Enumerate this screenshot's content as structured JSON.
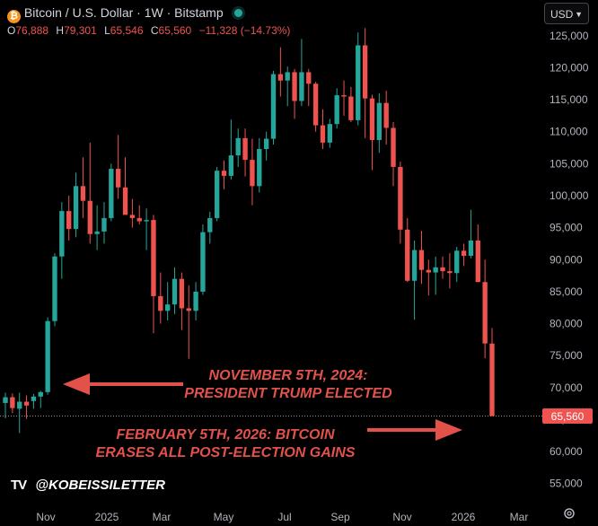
{
  "header": {
    "btc_glyph": "₿",
    "title": "Bitcoin / U.S. Dollar · 1W · Bitstamp",
    "ohlc": [
      {
        "k": "O",
        "v": "76,888"
      },
      {
        "k": "H",
        "v": "79,301"
      },
      {
        "k": "L",
        "v": "65,546"
      },
      {
        "k": "C",
        "v": "65,560"
      }
    ],
    "change": "−11,328 (−14.73%)"
  },
  "currency_select": {
    "label": "USD"
  },
  "annotations": {
    "election": [
      "NOVEMBER 5TH, 2024:",
      "PRESIDENT TRUMP ELECTED"
    ],
    "crash": [
      "FEBRUARY 5TH, 2026: BITCOIN",
      "ERASES ALL POST-ELECTION GAINS"
    ]
  },
  "brand": {
    "logo": "TV",
    "handle": "@KOBEISSILETTER"
  },
  "colors": {
    "up": "#26a69a",
    "down": "#ef5350",
    "annotation": "#e2524b",
    "price_tag": "#ef5350"
  },
  "chart_data": {
    "type": "candlestick",
    "x_tick_labels": [
      "Nov",
      "2025",
      "Mar",
      "May",
      "Jul",
      "Sep",
      "Nov",
      "2026",
      "Mar"
    ],
    "y_tick_labels": [
      55000,
      60000,
      65000,
      70000,
      75000,
      80000,
      85000,
      90000,
      95000,
      100000,
      105000,
      110000,
      115000,
      120000,
      125000
    ],
    "ylim": [
      53000,
      127500
    ],
    "last_price": 65560,
    "last_price_label": "65,560",
    "candles": [
      {
        "o": 67600,
        "h": 69200,
        "l": 65200,
        "c": 68500
      },
      {
        "o": 68500,
        "h": 69100,
        "l": 66000,
        "c": 66800
      },
      {
        "o": 66700,
        "h": 69200,
        "l": 62900,
        "c": 67800
      },
      {
        "o": 67800,
        "h": 68800,
        "l": 65100,
        "c": 67200
      },
      {
        "o": 67900,
        "h": 69000,
        "l": 66700,
        "c": 68600
      },
      {
        "o": 68600,
        "h": 69500,
        "l": 66800,
        "c": 69300
      },
      {
        "o": 69300,
        "h": 81000,
        "l": 68900,
        "c": 80400
      },
      {
        "o": 80400,
        "h": 91000,
        "l": 79600,
        "c": 90500
      },
      {
        "o": 90500,
        "h": 99000,
        "l": 87000,
        "c": 97600
      },
      {
        "o": 97600,
        "h": 100000,
        "l": 93000,
        "c": 94800
      },
      {
        "o": 94800,
        "h": 103600,
        "l": 93500,
        "c": 101500
      },
      {
        "o": 101500,
        "h": 106000,
        "l": 96500,
        "c": 99200
      },
      {
        "o": 99200,
        "h": 108300,
        "l": 92500,
        "c": 94000
      },
      {
        "o": 94000,
        "h": 98500,
        "l": 91500,
        "c": 94400
      },
      {
        "o": 94400,
        "h": 99000,
        "l": 92500,
        "c": 96500
      },
      {
        "o": 96500,
        "h": 105000,
        "l": 96000,
        "c": 104200
      },
      {
        "o": 104200,
        "h": 109500,
        "l": 99500,
        "c": 101300
      },
      {
        "o": 101300,
        "h": 106000,
        "l": 97500,
        "c": 97000
      },
      {
        "o": 97000,
        "h": 99500,
        "l": 95000,
        "c": 96500
      },
      {
        "o": 96500,
        "h": 98500,
        "l": 95500,
        "c": 96000
      },
      {
        "o": 96000,
        "h": 98000,
        "l": 91500,
        "c": 96200
      },
      {
        "o": 96200,
        "h": 97000,
        "l": 78500,
        "c": 84300
      },
      {
        "o": 84300,
        "h": 88000,
        "l": 80000,
        "c": 82000
      },
      {
        "o": 82000,
        "h": 86500,
        "l": 80500,
        "c": 83000
      },
      {
        "o": 83000,
        "h": 88800,
        "l": 81500,
        "c": 87000
      },
      {
        "o": 87000,
        "h": 88000,
        "l": 79000,
        "c": 82400
      },
      {
        "o": 82400,
        "h": 86000,
        "l": 74500,
        "c": 82000
      },
      {
        "o": 82000,
        "h": 86500,
        "l": 80500,
        "c": 85000
      },
      {
        "o": 85000,
        "h": 95500,
        "l": 84500,
        "c": 94300
      },
      {
        "o": 94300,
        "h": 97500,
        "l": 92500,
        "c": 96500
      },
      {
        "o": 96500,
        "h": 104500,
        "l": 96000,
        "c": 103900
      },
      {
        "o": 103900,
        "h": 105500,
        "l": 101000,
        "c": 103100
      },
      {
        "o": 103100,
        "h": 111900,
        "l": 102500,
        "c": 106300
      },
      {
        "o": 106300,
        "h": 110500,
        "l": 104500,
        "c": 109000
      },
      {
        "o": 109000,
        "h": 110500,
        "l": 103000,
        "c": 105600
      },
      {
        "o": 105600,
        "h": 108900,
        "l": 98500,
        "c": 101500
      },
      {
        "o": 101500,
        "h": 109000,
        "l": 100500,
        "c": 107300
      },
      {
        "o": 107300,
        "h": 110000,
        "l": 105500,
        "c": 108900
      },
      {
        "o": 108900,
        "h": 119500,
        "l": 108000,
        "c": 119000
      },
      {
        "o": 119000,
        "h": 123200,
        "l": 115500,
        "c": 118000
      },
      {
        "o": 118000,
        "h": 120200,
        "l": 114000,
        "c": 119300
      },
      {
        "o": 119300,
        "h": 119800,
        "l": 112000,
        "c": 114800
      },
      {
        "o": 114800,
        "h": 124500,
        "l": 114000,
        "c": 119300
      },
      {
        "o": 119300,
        "h": 119800,
        "l": 114000,
        "c": 117500
      },
      {
        "o": 117500,
        "h": 117800,
        "l": 110000,
        "c": 111000
      },
      {
        "o": 111000,
        "h": 113500,
        "l": 107300,
        "c": 108300
      },
      {
        "o": 108300,
        "h": 112000,
        "l": 107500,
        "c": 111200
      },
      {
        "o": 111200,
        "h": 116800,
        "l": 110500,
        "c": 115700
      },
      {
        "o": 115700,
        "h": 118000,
        "l": 112500,
        "c": 115500
      },
      {
        "o": 115500,
        "h": 117000,
        "l": 111500,
        "c": 111800
      },
      {
        "o": 111800,
        "h": 125500,
        "l": 111000,
        "c": 123500
      },
      {
        "o": 123500,
        "h": 126200,
        "l": 109000,
        "c": 115200
      },
      {
        "o": 115200,
        "h": 115800,
        "l": 104000,
        "c": 108700
      },
      {
        "o": 108700,
        "h": 116000,
        "l": 106700,
        "c": 114500
      },
      {
        "o": 114500,
        "h": 116400,
        "l": 108000,
        "c": 110600
      },
      {
        "o": 110600,
        "h": 111500,
        "l": 101500,
        "c": 104500
      },
      {
        "o": 104500,
        "h": 105300,
        "l": 92500,
        "c": 94700
      },
      {
        "o": 94700,
        "h": 96500,
        "l": 86500,
        "c": 86700
      },
      {
        "o": 86700,
        "h": 93000,
        "l": 80600,
        "c": 91500
      },
      {
        "o": 91500,
        "h": 94500,
        "l": 86200,
        "c": 88400
      },
      {
        "o": 88400,
        "h": 90000,
        "l": 84400,
        "c": 88000
      },
      {
        "o": 88000,
        "h": 90500,
        "l": 84500,
        "c": 88800
      },
      {
        "o": 88800,
        "h": 90500,
        "l": 87000,
        "c": 88200
      },
      {
        "o": 88200,
        "h": 91000,
        "l": 85500,
        "c": 87900
      },
      {
        "o": 87900,
        "h": 92000,
        "l": 86500,
        "c": 91400
      },
      {
        "o": 91400,
        "h": 92500,
        "l": 89000,
        "c": 90600
      },
      {
        "o": 90600,
        "h": 97800,
        "l": 90200,
        "c": 93000
      },
      {
        "o": 93000,
        "h": 95500,
        "l": 86500,
        "c": 86500
      },
      {
        "o": 86500,
        "h": 90000,
        "l": 74600,
        "c": 76900
      },
      {
        "o": 76888,
        "h": 79301,
        "l": 65546,
        "c": 65560
      }
    ]
  }
}
